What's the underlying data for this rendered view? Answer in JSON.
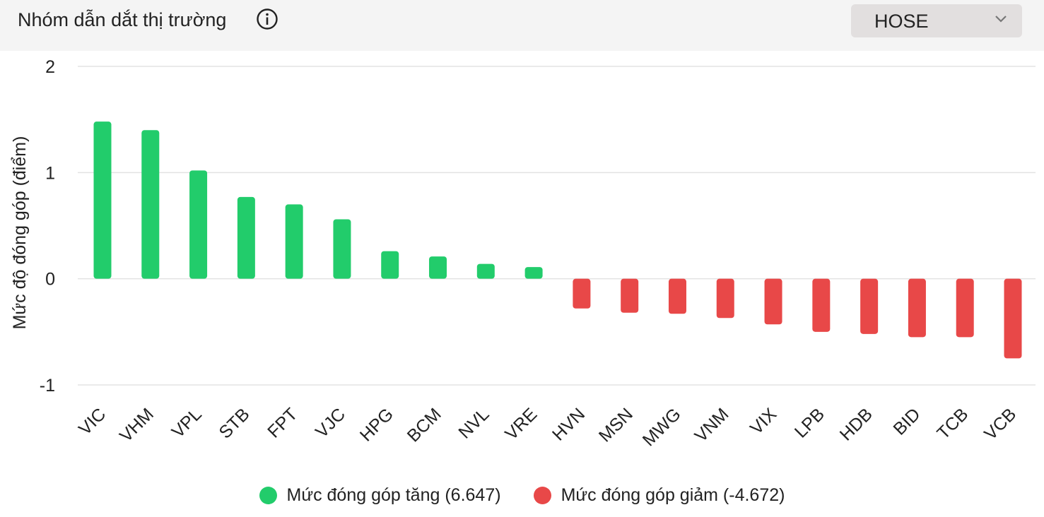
{
  "header": {
    "title": "Nhóm dẫn dắt thị trường",
    "info_icon": "info-circle-icon",
    "exchange_select": {
      "value": "HOSE",
      "icon": "chevron-down-icon"
    }
  },
  "colors": {
    "positive": "#22cc6b",
    "negative": "#e84848",
    "grid": "#e3e3e3",
    "header_bg": "#f4f4f4",
    "select_bg": "#e2dfdf"
  },
  "chart_data": {
    "type": "bar",
    "ylabel": "Mức độ đóng góp (điểm)",
    "ylim": [
      -1,
      2
    ],
    "yticks": [
      2,
      1,
      0,
      -1
    ],
    "grid": true,
    "categories": [
      "VIC",
      "VHM",
      "VPL",
      "STB",
      "FPT",
      "VJC",
      "HPG",
      "BCM",
      "NVL",
      "VRE",
      "HVN",
      "MSN",
      "MWG",
      "VNM",
      "VIX",
      "LPB",
      "HDB",
      "BID",
      "TCB",
      "VCB"
    ],
    "values": [
      1.48,
      1.4,
      1.02,
      0.77,
      0.7,
      0.56,
      0.26,
      0.21,
      0.14,
      0.11,
      -0.28,
      -0.32,
      -0.33,
      -0.37,
      -0.43,
      -0.5,
      -0.52,
      -0.55,
      -0.55,
      -0.75
    ],
    "legend": [
      {
        "label": "Mức đóng góp tăng (6.647)",
        "color": "#22cc6b"
      },
      {
        "label": "Mức đóng góp giảm (-4.672)",
        "color": "#e84848"
      }
    ],
    "legend_position": "bottom"
  }
}
